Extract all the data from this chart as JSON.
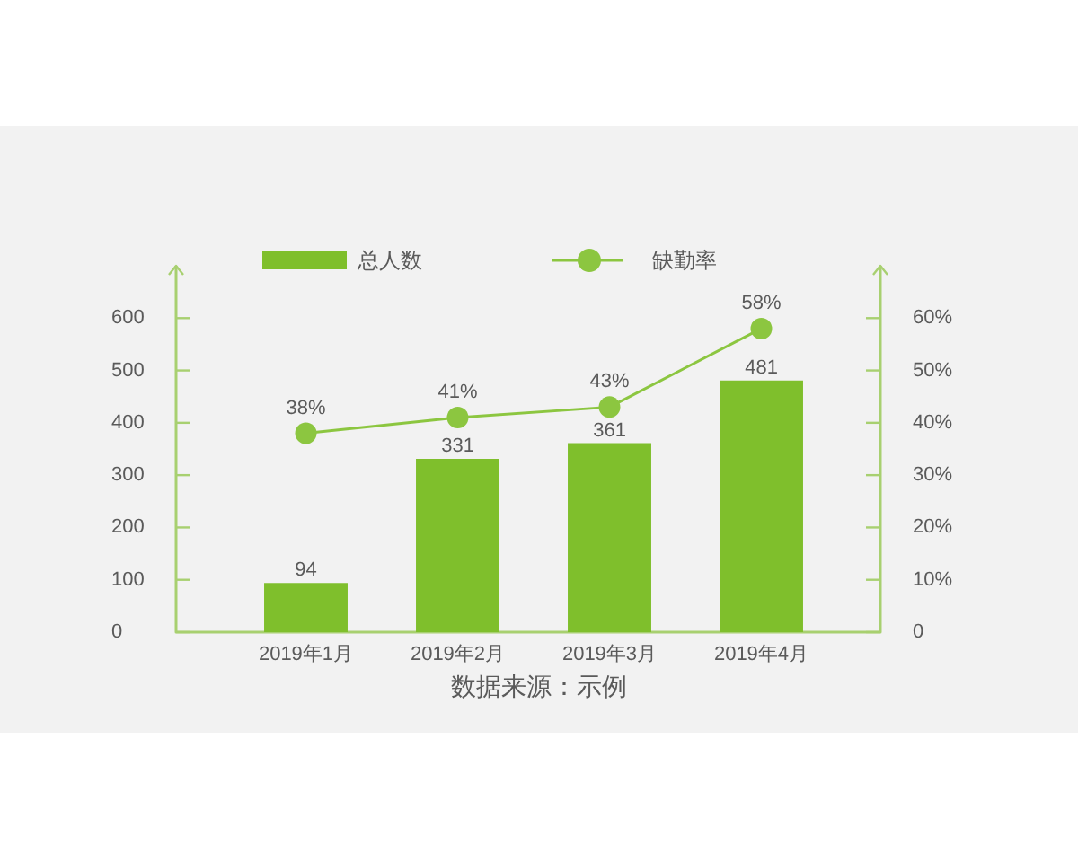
{
  "chart_data": {
    "type": "bar",
    "categories": [
      "2019年1月",
      "2019年2月",
      "2019年3月",
      "2019年4月"
    ],
    "series": [
      {
        "name": "总人数",
        "color": "#7fbf2c",
        "values": [
          94,
          331,
          361,
          481
        ],
        "value_labels": [
          "94",
          "331",
          "361",
          "481"
        ]
      },
      {
        "name": "缺勤率",
        "type": "line",
        "axis": "y2",
        "color": "#8cc640",
        "marker": "circle",
        "values": [
          38,
          41,
          43,
          58
        ],
        "value_labels": [
          "38%",
          "41%",
          "43%",
          "58%"
        ]
      }
    ],
    "ylim": [
      0,
      700
    ],
    "yticks": [
      0,
      100,
      200,
      300,
      400,
      500,
      600
    ],
    "y2lim": [
      0,
      70
    ],
    "y2ticks": [
      0,
      {
        "value": 10,
        "label": "10%"
      },
      {
        "value": 20,
        "label": "20%"
      },
      {
        "value": 30,
        "label": "30%"
      },
      {
        "value": 40,
        "label": "40%"
      },
      {
        "value": 50,
        "label": "50%"
      },
      {
        "value": 60,
        "label": "60%"
      }
    ],
    "grid": false,
    "legend": "top",
    "annotations": [
      "数据来源：示例"
    ]
  }
}
